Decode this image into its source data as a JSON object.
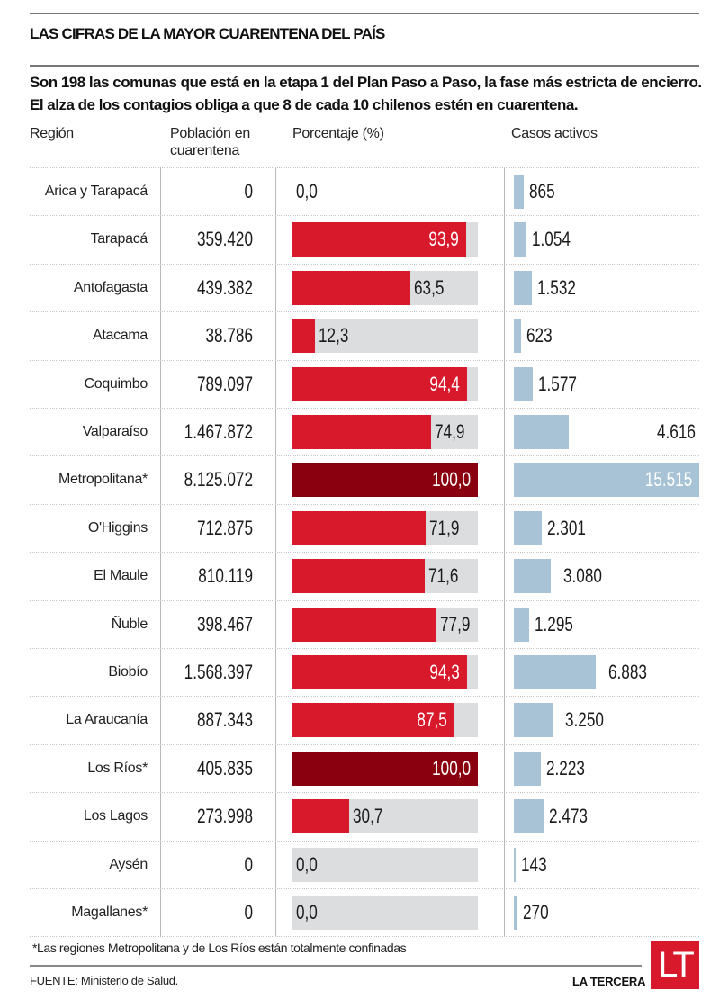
{
  "header": {
    "title": "LAS CIFRAS DE LA MAYOR CUARENTENA DEL PAÍS",
    "subtitle": "Son 198 las comunas que está en la etapa 1 del Plan Paso a Paso, la fase más estricta de encierro. El alza de los contagios obliga a que 8 de cada 10 chilenos estén en cuarentena."
  },
  "columns": {
    "region": "Región",
    "population": "Población en cuarentena",
    "percentage": "Porcentaje (%)",
    "active_cases": "Casos activos"
  },
  "colors": {
    "percent_bar": "#d7192b",
    "percent_bar_full": "#8a000f",
    "percent_bg": "#dcdddf",
    "cases_bar": "#a7c3d5",
    "logo": "#d7192b"
  },
  "chart_data": {
    "type": "table",
    "title": "LAS CIFRAS DE LA MAYOR CUARENTENA DEL PAÍS",
    "columns": [
      "Región",
      "Población en cuarentena",
      "Porcentaje (%)",
      "Casos activos"
    ],
    "percentage_range": [
      0,
      100
    ],
    "cases_max": 15515,
    "rows": [
      {
        "region": "Arica y Tarapacá",
        "population": "0",
        "percent": 0.0,
        "percent_label": "0,0",
        "show_bg": false,
        "cases": 865,
        "cases_label": "865"
      },
      {
        "region": "Tarapacá",
        "population": "359.420",
        "percent": 93.9,
        "percent_label": "93,9",
        "show_bg": true,
        "cases": 1054,
        "cases_label": "1.054"
      },
      {
        "region": "Antofagasta",
        "population": "439.382",
        "percent": 63.5,
        "percent_label": "63,5",
        "show_bg": true,
        "cases": 1532,
        "cases_label": "1.532"
      },
      {
        "region": "Atacama",
        "population": "38.786",
        "percent": 12.3,
        "percent_label": "12,3",
        "show_bg": true,
        "cases": 623,
        "cases_label": "623"
      },
      {
        "region": "Coquimbo",
        "population": "789.097",
        "percent": 94.4,
        "percent_label": "94,4",
        "show_bg": true,
        "cases": 1577,
        "cases_label": "1.577"
      },
      {
        "region": "Valparaíso",
        "population": "1.467.872",
        "percent": 74.9,
        "percent_label": "74,9",
        "show_bg": true,
        "cases": 4616,
        "cases_label": "4.616"
      },
      {
        "region": "Metropolitana*",
        "population": "8.125.072",
        "percent": 100.0,
        "percent_label": "100,0",
        "show_bg": true,
        "cases": 15515,
        "cases_label": "15.515"
      },
      {
        "region": "O'Higgins",
        "population": "712.875",
        "percent": 71.9,
        "percent_label": "71,9",
        "show_bg": true,
        "cases": 2301,
        "cases_label": "2.301"
      },
      {
        "region": "El Maule",
        "population": "810.119",
        "percent": 71.6,
        "percent_label": "71,6",
        "show_bg": true,
        "cases": 3080,
        "cases_label": "3.080"
      },
      {
        "region": "Ñuble",
        "population": "398.467",
        "percent": 77.9,
        "percent_label": "77,9",
        "show_bg": true,
        "cases": 1295,
        "cases_label": "1.295"
      },
      {
        "region": "Biobío",
        "population": "1.568.397",
        "percent": 94.3,
        "percent_label": "94,3",
        "show_bg": true,
        "cases": 6883,
        "cases_label": "6.883"
      },
      {
        "region": "La Araucanía",
        "population": "887.343",
        "percent": 87.5,
        "percent_label": "87,5",
        "show_bg": true,
        "cases": 3250,
        "cases_label": "3.250"
      },
      {
        "region": "Los Ríos*",
        "population": "405.835",
        "percent": 100.0,
        "percent_label": "100,0",
        "show_bg": true,
        "cases": 2223,
        "cases_label": "2.223"
      },
      {
        "region": "Los Lagos",
        "population": "273.998",
        "percent": 30.7,
        "percent_label": "30,7",
        "show_bg": true,
        "cases": 2473,
        "cases_label": "2.473"
      },
      {
        "region": "Aysén",
        "population": "0",
        "percent": 0.0,
        "percent_label": "0,0",
        "show_bg": true,
        "cases": 143,
        "cases_label": "143"
      },
      {
        "region": "Magallanes*",
        "population": "0",
        "percent": 0.0,
        "percent_label": "0,0",
        "show_bg": true,
        "cases": 270,
        "cases_label": "270"
      }
    ]
  },
  "footer": {
    "footnote": "*Las regiones Metropolitana y de Los Ríos están totalmente confinadas",
    "source": "FUENTE: Ministerio de Salud.",
    "brand": "LA TERCERA",
    "logo_text": "LT"
  }
}
